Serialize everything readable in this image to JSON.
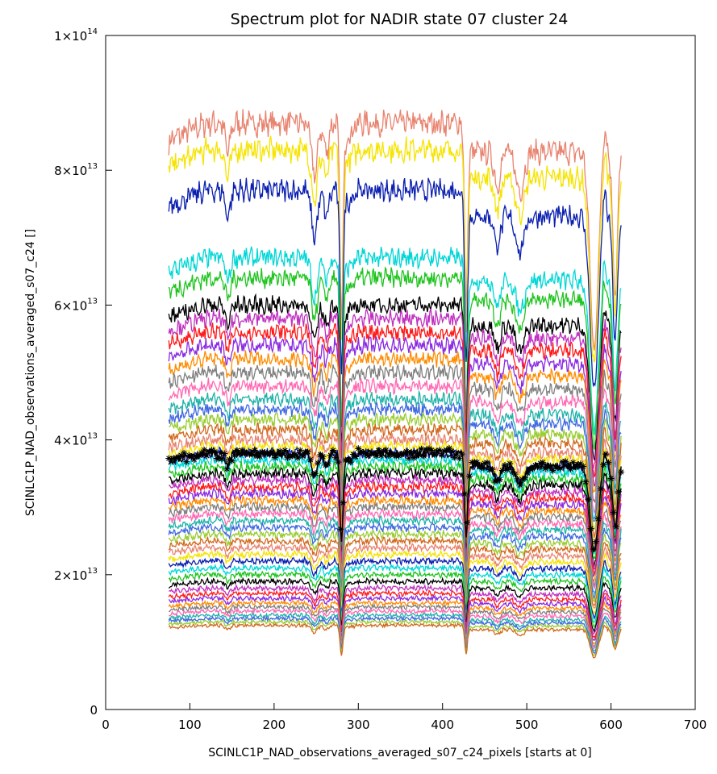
{
  "chart_data": {
    "type": "line",
    "title": "Spectrum plot for NADIR state 07 cluster 24",
    "xlabel": "SCINLC1P_NAD_observations_averaged_s07_c24_pixels [starts at 0]",
    "ylabel": "SCINLC1P_NAD_observations_averaged_s07_c24 []",
    "xlim": [
      0,
      700
    ],
    "ylim": [
      0,
      100000000000000.0
    ],
    "x_ticks": [
      {
        "value": 0,
        "label": "0"
      },
      {
        "value": 100,
        "label": "100"
      },
      {
        "value": 200,
        "label": "200"
      },
      {
        "value": 300,
        "label": "300"
      },
      {
        "value": 400,
        "label": "400"
      },
      {
        "value": 500,
        "label": "500"
      },
      {
        "value": 600,
        "label": "600"
      },
      {
        "value": 700,
        "label": "700"
      }
    ],
    "y_ticks": [
      {
        "value": 0,
        "mantissa": "0",
        "exp": ""
      },
      {
        "value": 20000000000000.0,
        "mantissa": "2×10",
        "exp": "13"
      },
      {
        "value": 40000000000000.0,
        "mantissa": "4×10",
        "exp": "13"
      },
      {
        "value": 60000000000000.0,
        "mantissa": "6×10",
        "exp": "13"
      },
      {
        "value": 80000000000000.0,
        "mantissa": "8×10",
        "exp": "13"
      },
      {
        "value": 100000000000000.0,
        "mantissa": "1×10",
        "exp": "14"
      }
    ],
    "grid": false,
    "legend": "none",
    "x_range": [
      75,
      612
    ],
    "num_series": 48,
    "series_levels": [
      87000000000000.0,
      83000000000000.0,
      77000000000000.0,
      67000000000000.0,
      64000000000000.0,
      60000000000000.0,
      58000000000000.0,
      56000000000000.0,
      54000000000000.0,
      52000000000000.0,
      50000000000000.0,
      48000000000000.0,
      46000000000000.0,
      44500000000000.0,
      43000000000000.0,
      41500000000000.0,
      40000000000000.0,
      39000000000000.0,
      38000000000000.0,
      37000000000000.0,
      36000000000000.0,
      35000000000000.0,
      34000000000000.0,
      33000000000000.0,
      32000000000000.0,
      31000000000000.0,
      30000000000000.0,
      29000000000000.0,
      28000000000000.0,
      27000000000000.0,
      26000000000000.0,
      25000000000000.0,
      24000000000000.0,
      23000000000000.0,
      22000000000000.0,
      21000000000000.0,
      20000000000000.0,
      19000000000000.0,
      18000000000000.0,
      17200000000000.0,
      16500000000000.0,
      15800000000000.0,
      15200000000000.0,
      14600000000000.0,
      14000000000000.0,
      13500000000000.0,
      13000000000000.0,
      12500000000000.0
    ],
    "highlight_series": {
      "level": 38000000000000.0,
      "marker": "asterisk",
      "color": "#000000"
    },
    "palette": [
      "#e8836f",
      "#f5e400",
      "#0a1fb0",
      "#00d6d6",
      "#1fc41f",
      "#000000",
      "#c030c0",
      "#ff1a1a",
      "#8a2be2",
      "#ff8c00",
      "#808080",
      "#ff69b4",
      "#20b2aa",
      "#4169e1",
      "#9acd32",
      "#d2691e"
    ]
  }
}
